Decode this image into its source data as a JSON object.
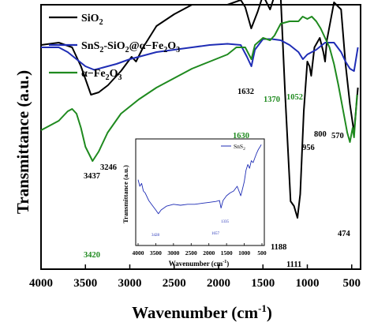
{
  "chart_data": [
    {
      "type": "line",
      "xlabel": "Wavenumber (cm",
      "xlabel_sup": "-1",
      "xlabel_close": ")",
      "ylabel": "Transmittance (a.u.)",
      "xlim": [
        4000,
        400
      ],
      "x_reversed": true,
      "x_ticks": [
        "4000",
        "3500",
        "3000",
        "2500",
        "2000",
        "1500",
        "1000",
        "500"
      ],
      "y_ticks_shown": false,
      "grid": false,
      "legend_position": "top-left",
      "series": [
        {
          "name": "SiO",
          "name_sub": "2",
          "color": "#000000",
          "points": [
            [
              4000,
              0.83
            ],
            [
              3800,
              0.84
            ],
            [
              3650,
              0.82
            ],
            [
              3550,
              0.74
            ],
            [
              3437,
              0.62
            ],
            [
              3350,
              0.63
            ],
            [
              3246,
              0.66
            ],
            [
              3100,
              0.72
            ],
            [
              2980,
              0.78
            ],
            [
              2930,
              0.76
            ],
            [
              2850,
              0.82
            ],
            [
              2700,
              0.91
            ],
            [
              2500,
              0.96
            ],
            [
              2300,
              1.0
            ],
            [
              2100,
              1.0
            ],
            [
              1900,
              1.0
            ],
            [
              1750,
              1.02
            ],
            [
              1700,
              0.99
            ],
            [
              1632,
              0.9
            ],
            [
              1560,
              0.97
            ],
            [
              1500,
              1.04
            ],
            [
              1420,
              0.98
            ],
            [
              1350,
              1.06
            ],
            [
              1300,
              1.03
            ],
            [
              1250,
              0.62
            ],
            [
              1188,
              0.17
            ],
            [
              1150,
              0.15
            ],
            [
              1111,
              0.1
            ],
            [
              1080,
              0.2
            ],
            [
              1040,
              0.55
            ],
            [
              1000,
              0.76
            ],
            [
              975,
              0.74
            ],
            [
              956,
              0.7
            ],
            [
              920,
              0.82
            ],
            [
              860,
              0.86
            ],
            [
              820,
              0.8
            ],
            [
              800,
              0.76
            ],
            [
              780,
              0.85
            ],
            [
              700,
              1.01
            ],
            [
              620,
              0.98
            ],
            [
              570,
              0.75
            ],
            [
              520,
              0.58
            ],
            [
              474,
              0.46
            ],
            [
              430,
              0.65
            ]
          ]
        },
        {
          "name": "SnS",
          "name_sub": "2",
          "name_rest": "-SiO",
          "name_sub2": "2",
          "name_rest2": "@α−Fe",
          "name_sub3": "2",
          "name_rest3": "O",
          "name_sub4": "3",
          "color": "#1f2db5",
          "points": [
            [
              4000,
              0.82
            ],
            [
              3900,
              0.82
            ],
            [
              3800,
              0.82
            ],
            [
              3700,
              0.8
            ],
            [
              3600,
              0.77
            ],
            [
              3500,
              0.74
            ],
            [
              3400,
              0.725
            ],
            [
              3300,
              0.735
            ],
            [
              3150,
              0.75
            ],
            [
              3000,
              0.77
            ],
            [
              2900,
              0.78
            ],
            [
              2700,
              0.8
            ],
            [
              2500,
              0.81
            ],
            [
              2300,
              0.82
            ],
            [
              2100,
              0.83
            ],
            [
              1900,
              0.835
            ],
            [
              1750,
              0.83
            ],
            [
              1680,
              0.78
            ],
            [
              1630,
              0.74
            ],
            [
              1590,
              0.81
            ],
            [
              1500,
              0.855
            ],
            [
              1400,
              0.855
            ],
            [
              1300,
              0.85
            ],
            [
              1200,
              0.83
            ],
            [
              1100,
              0.8
            ],
            [
              1050,
              0.77
            ],
            [
              1000,
              0.79
            ],
            [
              900,
              0.81
            ],
            [
              800,
              0.84
            ],
            [
              700,
              0.84
            ],
            [
              620,
              0.8
            ],
            [
              570,
              0.76
            ],
            [
              520,
              0.73
            ],
            [
              474,
              0.72
            ],
            [
              430,
              0.82
            ]
          ]
        },
        {
          "name": "α−Fe",
          "name_sub": "2",
          "name_rest": "O",
          "name_sub2": "3",
          "color": "#1f8a1f",
          "points": [
            [
              4000,
              0.47
            ],
            [
              3900,
              0.49
            ],
            [
              3800,
              0.51
            ],
            [
              3700,
              0.55
            ],
            [
              3650,
              0.56
            ],
            [
              3600,
              0.54
            ],
            [
              3550,
              0.48
            ],
            [
              3500,
              0.4
            ],
            [
              3420,
              0.34
            ],
            [
              3350,
              0.38
            ],
            [
              3250,
              0.46
            ],
            [
              3100,
              0.54
            ],
            [
              2900,
              0.6
            ],
            [
              2700,
              0.65
            ],
            [
              2500,
              0.69
            ],
            [
              2300,
              0.73
            ],
            [
              2100,
              0.76
            ],
            [
              1900,
              0.79
            ],
            [
              1800,
              0.82
            ],
            [
              1700,
              0.82
            ],
            [
              1630,
              0.77
            ],
            [
              1590,
              0.83
            ],
            [
              1500,
              0.86
            ],
            [
              1420,
              0.85
            ],
            [
              1370,
              0.87
            ],
            [
              1300,
              0.92
            ],
            [
              1200,
              0.93
            ],
            [
              1100,
              0.93
            ],
            [
              1052,
              0.95
            ],
            [
              1000,
              0.94
            ],
            [
              950,
              0.95
            ],
            [
              900,
              0.93
            ],
            [
              850,
              0.9
            ],
            [
              800,
              0.86
            ],
            [
              750,
              0.82
            ],
            [
              700,
              0.75
            ],
            [
              650,
              0.66
            ],
            [
              600,
              0.56
            ],
            [
              550,
              0.46
            ],
            [
              520,
              0.42
            ],
            [
              490,
              0.48
            ],
            [
              474,
              0.44
            ],
            [
              440,
              0.62
            ]
          ]
        }
      ],
      "annotations": [
        {
          "text": "3437",
          "color": "#000000"
        },
        {
          "text": "3246",
          "color": "#000000"
        },
        {
          "text": "1632",
          "color": "#000000"
        },
        {
          "text": "1370",
          "color": "#1f8a1f"
        },
        {
          "text": "1052",
          "color": "#1f8a1f"
        },
        {
          "text": "1630",
          "color": "#1f8a1f"
        },
        {
          "text": "956",
          "color": "#000000"
        },
        {
          "text": "800",
          "color": "#000000"
        },
        {
          "text": "570",
          "color": "#000000"
        },
        {
          "text": "3420",
          "color": "#1f8a1f"
        },
        {
          "text": "1188",
          "color": "#000000"
        },
        {
          "text": "1111",
          "color": "#000000"
        },
        {
          "text": "474",
          "color": "#000000"
        }
      ]
    },
    {
      "type": "line",
      "xlabel": "Wavenumber (cm",
      "xlabel_sup": "-1",
      "xlabel_close": ")",
      "ylabel": "Transmittance (a.u.)",
      "xlim": [
        4000,
        500
      ],
      "x_reversed": true,
      "x_ticks": [
        "4000",
        "3500",
        "3000",
        "2500",
        "2000",
        "1500",
        "1000",
        "500"
      ],
      "grid": false,
      "legend_position": "top-right",
      "series": [
        {
          "name": "SnS",
          "name_sub": "2",
          "color": "#1f2db5",
          "points": [
            [
              4000,
              0.62
            ],
            [
              3950,
              0.55
            ],
            [
              3900,
              0.58
            ],
            [
              3850,
              0.5
            ],
            [
              3800,
              0.48
            ],
            [
              3700,
              0.4
            ],
            [
              3600,
              0.35
            ],
            [
              3500,
              0.3
            ],
            [
              3428,
              0.26
            ],
            [
              3350,
              0.3
            ],
            [
              3200,
              0.34
            ],
            [
              3000,
              0.36
            ],
            [
              2800,
              0.35
            ],
            [
              2600,
              0.36
            ],
            [
              2400,
              0.36
            ],
            [
              2200,
              0.37
            ],
            [
              2000,
              0.38
            ],
            [
              1800,
              0.39
            ],
            [
              1700,
              0.4
            ],
            [
              1657,
              0.32
            ],
            [
              1600,
              0.4
            ],
            [
              1500,
              0.45
            ],
            [
              1400,
              0.48
            ],
            [
              1300,
              0.5
            ],
            [
              1200,
              0.55
            ],
            [
              1100,
              0.45
            ],
            [
              1050,
              0.52
            ],
            [
              1000,
              0.6
            ],
            [
              950,
              0.72
            ],
            [
              900,
              0.78
            ],
            [
              850,
              0.74
            ],
            [
              800,
              0.82
            ],
            [
              750,
              0.8
            ],
            [
              700,
              0.85
            ],
            [
              650,
              0.9
            ],
            [
              600,
              0.94
            ],
            [
              550,
              0.97
            ],
            [
              520,
              0.99
            ]
          ]
        }
      ],
      "annotations": [
        {
          "text": "3428",
          "color": "#1f2db5"
        },
        {
          "text": "1657",
          "color": "#1f2db5"
        },
        {
          "text": "1335",
          "color": "#1f2db5"
        }
      ]
    }
  ]
}
